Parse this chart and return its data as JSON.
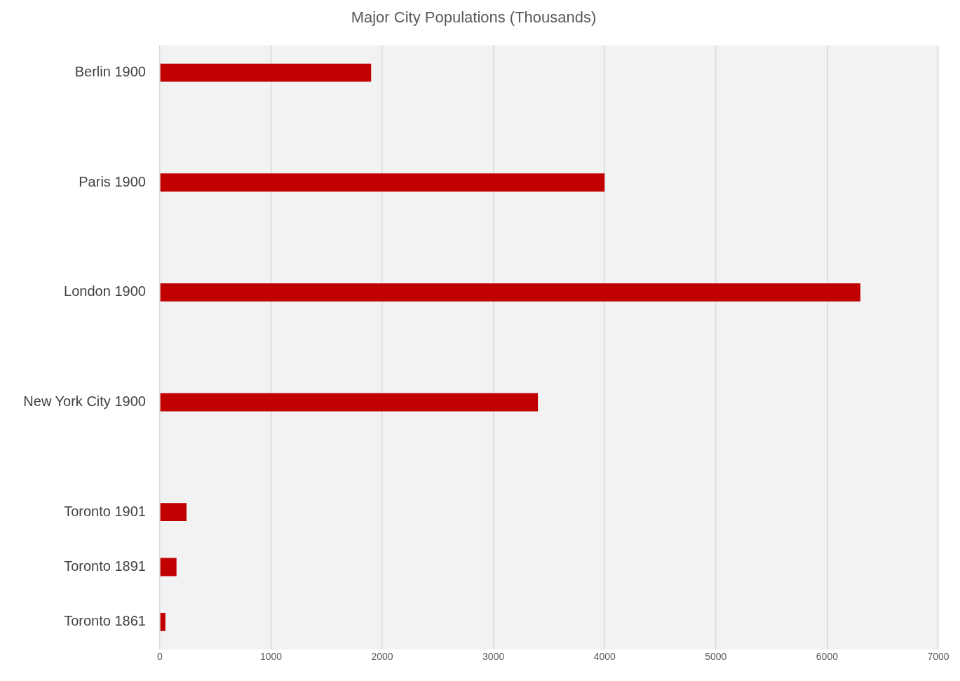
{
  "chart_data": {
    "type": "bar",
    "orientation": "horizontal",
    "title": "Major City Populations (Thousands)",
    "categories": [
      "Berlin 1900",
      null,
      "Paris 1900",
      null,
      "London 1900",
      null,
      "New York City 1900",
      null,
      "Toronto 1901",
      "Toronto 1891",
      "Toronto 1861"
    ],
    "values": [
      1900,
      null,
      4000,
      null,
      6300,
      null,
      3400,
      null,
      240,
      150,
      50
    ],
    "color": "#c00000",
    "xlim": [
      0,
      7000
    ],
    "xticks": [
      0,
      1000,
      2000,
      3000,
      4000,
      5000,
      6000,
      7000
    ],
    "grid": "x",
    "legend": false
  }
}
